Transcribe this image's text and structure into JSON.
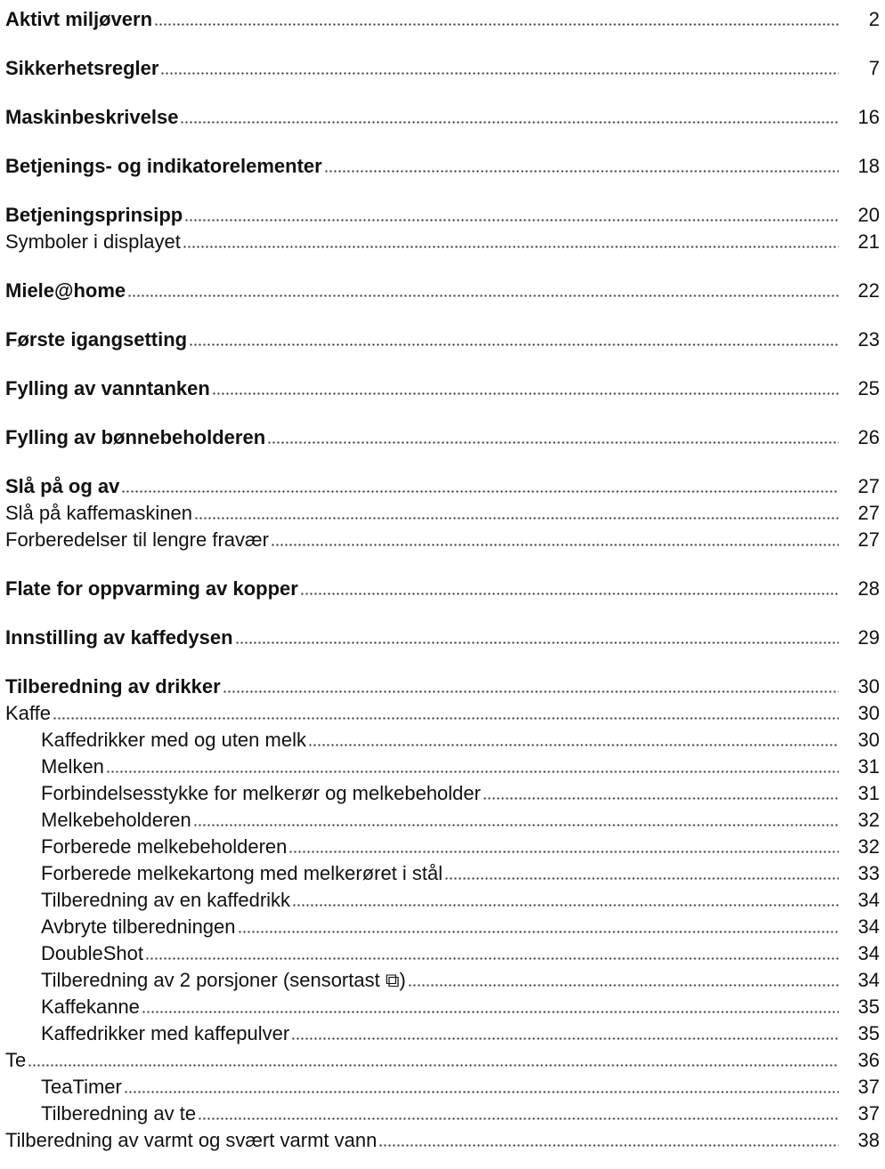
{
  "sections": [
    {
      "title": "Aktivt miljøvern",
      "page": 2
    },
    {
      "title": "Sikkerhetsregler",
      "page": 7
    },
    {
      "title": "Maskinbeskrivelse",
      "page": 16
    },
    {
      "title": "Betjenings- og indikatorelementer",
      "page": 18
    },
    {
      "title": "Betjeningsprinsipp",
      "page": 20,
      "items": [
        {
          "title": "Symboler i displayet",
          "page": 21
        }
      ]
    },
    {
      "title": "Miele@home",
      "page": 22
    },
    {
      "title": "Første igangsetting",
      "page": 23
    },
    {
      "title": "Fylling av vanntanken",
      "page": 25
    },
    {
      "title": "Fylling av bønnebeholderen",
      "page": 26
    },
    {
      "title": "Slå på og av",
      "page": 27,
      "items": [
        {
          "title": "Slå på kaffemaskinen",
          "page": 27
        },
        {
          "title": "Forberedelser til lengre fravær",
          "page": 27
        }
      ]
    },
    {
      "title": "Flate for oppvarming av kopper",
      "page": 28
    },
    {
      "title": "Innstilling av kaffedysen",
      "page": 29
    },
    {
      "title": "Tilberedning av drikker",
      "page": 30,
      "items": [
        {
          "title": "Kaffe",
          "page": 30,
          "items": [
            {
              "title": "Kaffedrikker med og uten melk",
              "page": 30
            },
            {
              "title": "Melken",
              "page": 31
            },
            {
              "title": "Forbindelsesstykke for melkerør og melkebeholder",
              "page": 31
            },
            {
              "title": "Melkebeholderen",
              "page": 32
            },
            {
              "title": "Forberede melkebeholderen",
              "page": 32
            },
            {
              "title": "Forberede melkekartong med melkerøret i stål",
              "page": 33
            },
            {
              "title": "Tilberedning av en kaffedrikk",
              "page": 34
            },
            {
              "title": "Avbryte tilberedningen",
              "page": 34
            },
            {
              "title": "DoubleShot",
              "page": 34
            },
            {
              "title": "Tilberedning av 2 porsjoner (sensortast ⧉)",
              "page": 34
            },
            {
              "title": "Kaffekanne",
              "page": 35
            },
            {
              "title": "Kaffedrikker med kaffepulver",
              "page": 35
            }
          ]
        },
        {
          "title": "Te",
          "page": 36,
          "items": [
            {
              "title": "TeaTimer",
              "page": 37
            },
            {
              "title": "Tilberedning av te",
              "page": 37
            }
          ]
        },
        {
          "title": "Tilberedning av varmt og svært varmt vann",
          "page": 38
        }
      ]
    }
  ]
}
